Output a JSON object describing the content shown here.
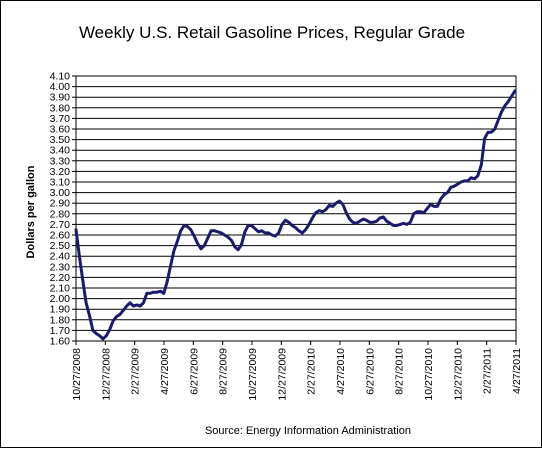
{
  "chart_data": {
    "type": "line",
    "title": "Weekly U.S. Retail Gasoline Prices, Regular Grade",
    "ylabel": "Dollars per gallon",
    "xlabel": "",
    "source": "Source:  Energy Information Administration",
    "ylim": [
      1.6,
      4.1
    ],
    "y_ticks": [
      "1.60",
      "1.70",
      "1.80",
      "1.90",
      "2.00",
      "2.10",
      "2.20",
      "2.30",
      "2.40",
      "2.50",
      "2.60",
      "2.70",
      "2.80",
      "2.90",
      "3.00",
      "3.10",
      "3.20",
      "3.30",
      "3.40",
      "3.50",
      "3.60",
      "3.70",
      "3.80",
      "3.90",
      "4.00",
      "4.10"
    ],
    "x_ticks": [
      "10/27/2008",
      "12/27/2008",
      "2/27/2009",
      "4/27/2009",
      "6/27/2009",
      "8/27/2009",
      "10/27/2009",
      "12/27/2009",
      "2/27/2010",
      "4/27/2010",
      "6/27/2010",
      "8/27/2010",
      "10/27/2010",
      "12/27/2010",
      "2/27/2011",
      "4/27/2011"
    ],
    "x_range": [
      "2008-10-27",
      "2011-04-27"
    ],
    "grid": true,
    "legend": "none",
    "line_color": "#1a1a6e",
    "x": [
      "2008-10-27",
      "2008-11-03",
      "2008-11-10",
      "2008-11-17",
      "2008-11-24",
      "2008-12-01",
      "2008-12-08",
      "2008-12-15",
      "2008-12-22",
      "2008-12-29",
      "2009-01-05",
      "2009-01-12",
      "2009-01-19",
      "2009-01-26",
      "2009-02-02",
      "2009-02-09",
      "2009-02-16",
      "2009-02-23",
      "2009-03-02",
      "2009-03-09",
      "2009-03-16",
      "2009-03-23",
      "2009-03-30",
      "2009-04-06",
      "2009-04-13",
      "2009-04-20",
      "2009-04-27",
      "2009-05-04",
      "2009-05-11",
      "2009-05-18",
      "2009-05-25",
      "2009-06-01",
      "2009-06-08",
      "2009-06-15",
      "2009-06-22",
      "2009-06-29",
      "2009-07-06",
      "2009-07-13",
      "2009-07-20",
      "2009-07-27",
      "2009-08-03",
      "2009-08-10",
      "2009-08-17",
      "2009-08-24",
      "2009-08-31",
      "2009-09-07",
      "2009-09-14",
      "2009-09-21",
      "2009-09-28",
      "2009-10-05",
      "2009-10-12",
      "2009-10-19",
      "2009-10-26",
      "2009-11-02",
      "2009-11-09",
      "2009-11-16",
      "2009-11-23",
      "2009-11-30",
      "2009-12-07",
      "2009-12-14",
      "2009-12-21",
      "2009-12-28",
      "2010-01-04",
      "2010-01-11",
      "2010-01-18",
      "2010-01-25",
      "2010-02-01",
      "2010-02-08",
      "2010-02-15",
      "2010-02-22",
      "2010-03-01",
      "2010-03-08",
      "2010-03-15",
      "2010-03-22",
      "2010-03-29",
      "2010-04-05",
      "2010-04-12",
      "2010-04-19",
      "2010-04-26",
      "2010-05-03",
      "2010-05-10",
      "2010-05-17",
      "2010-05-24",
      "2010-05-31",
      "2010-06-07",
      "2010-06-14",
      "2010-06-21",
      "2010-06-28",
      "2010-07-05",
      "2010-07-12",
      "2010-07-19",
      "2010-07-26",
      "2010-08-02",
      "2010-08-09",
      "2010-08-16",
      "2010-08-23",
      "2010-08-30",
      "2010-09-06",
      "2010-09-13",
      "2010-09-20",
      "2010-09-27",
      "2010-10-04",
      "2010-10-11",
      "2010-10-18",
      "2010-10-25",
      "2010-11-01",
      "2010-11-08",
      "2010-11-15",
      "2010-11-22",
      "2010-11-29",
      "2010-12-06",
      "2010-12-13",
      "2010-12-20",
      "2010-12-27",
      "2011-01-03",
      "2011-01-10",
      "2011-01-17",
      "2011-01-24",
      "2011-01-31",
      "2011-02-07",
      "2011-02-14",
      "2011-02-21",
      "2011-02-28",
      "2011-03-07",
      "2011-03-14",
      "2011-03-21",
      "2011-03-28",
      "2011-04-04",
      "2011-04-11",
      "2011-04-18",
      "2011-04-25"
    ],
    "values": [
      2.65,
      2.4,
      2.17,
      1.96,
      1.84,
      1.7,
      1.67,
      1.65,
      1.62,
      1.65,
      1.71,
      1.79,
      1.83,
      1.85,
      1.89,
      1.93,
      1.96,
      1.93,
      1.94,
      1.93,
      1.96,
      2.05,
      2.05,
      2.06,
      2.06,
      2.07,
      2.05,
      2.16,
      2.31,
      2.45,
      2.54,
      2.64,
      2.69,
      2.68,
      2.65,
      2.59,
      2.52,
      2.47,
      2.5,
      2.57,
      2.64,
      2.64,
      2.63,
      2.62,
      2.6,
      2.58,
      2.55,
      2.49,
      2.46,
      2.51,
      2.63,
      2.69,
      2.69,
      2.66,
      2.63,
      2.64,
      2.62,
      2.62,
      2.6,
      2.59,
      2.62,
      2.7,
      2.74,
      2.72,
      2.69,
      2.67,
      2.64,
      2.62,
      2.65,
      2.7,
      2.76,
      2.81,
      2.83,
      2.82,
      2.84,
      2.88,
      2.87,
      2.9,
      2.92,
      2.89,
      2.81,
      2.75,
      2.72,
      2.71,
      2.73,
      2.75,
      2.74,
      2.72,
      2.72,
      2.73,
      2.76,
      2.77,
      2.73,
      2.71,
      2.69,
      2.69,
      2.7,
      2.71,
      2.7,
      2.72,
      2.8,
      2.82,
      2.82,
      2.81,
      2.85,
      2.89,
      2.87,
      2.87,
      2.94,
      2.98,
      3.0,
      3.05,
      3.06,
      3.08,
      3.1,
      3.11,
      3.11,
      3.14,
      3.13,
      3.16,
      3.26,
      3.51,
      3.57,
      3.57,
      3.6,
      3.68,
      3.76,
      3.82,
      3.86,
      3.91,
      3.96
    ]
  }
}
